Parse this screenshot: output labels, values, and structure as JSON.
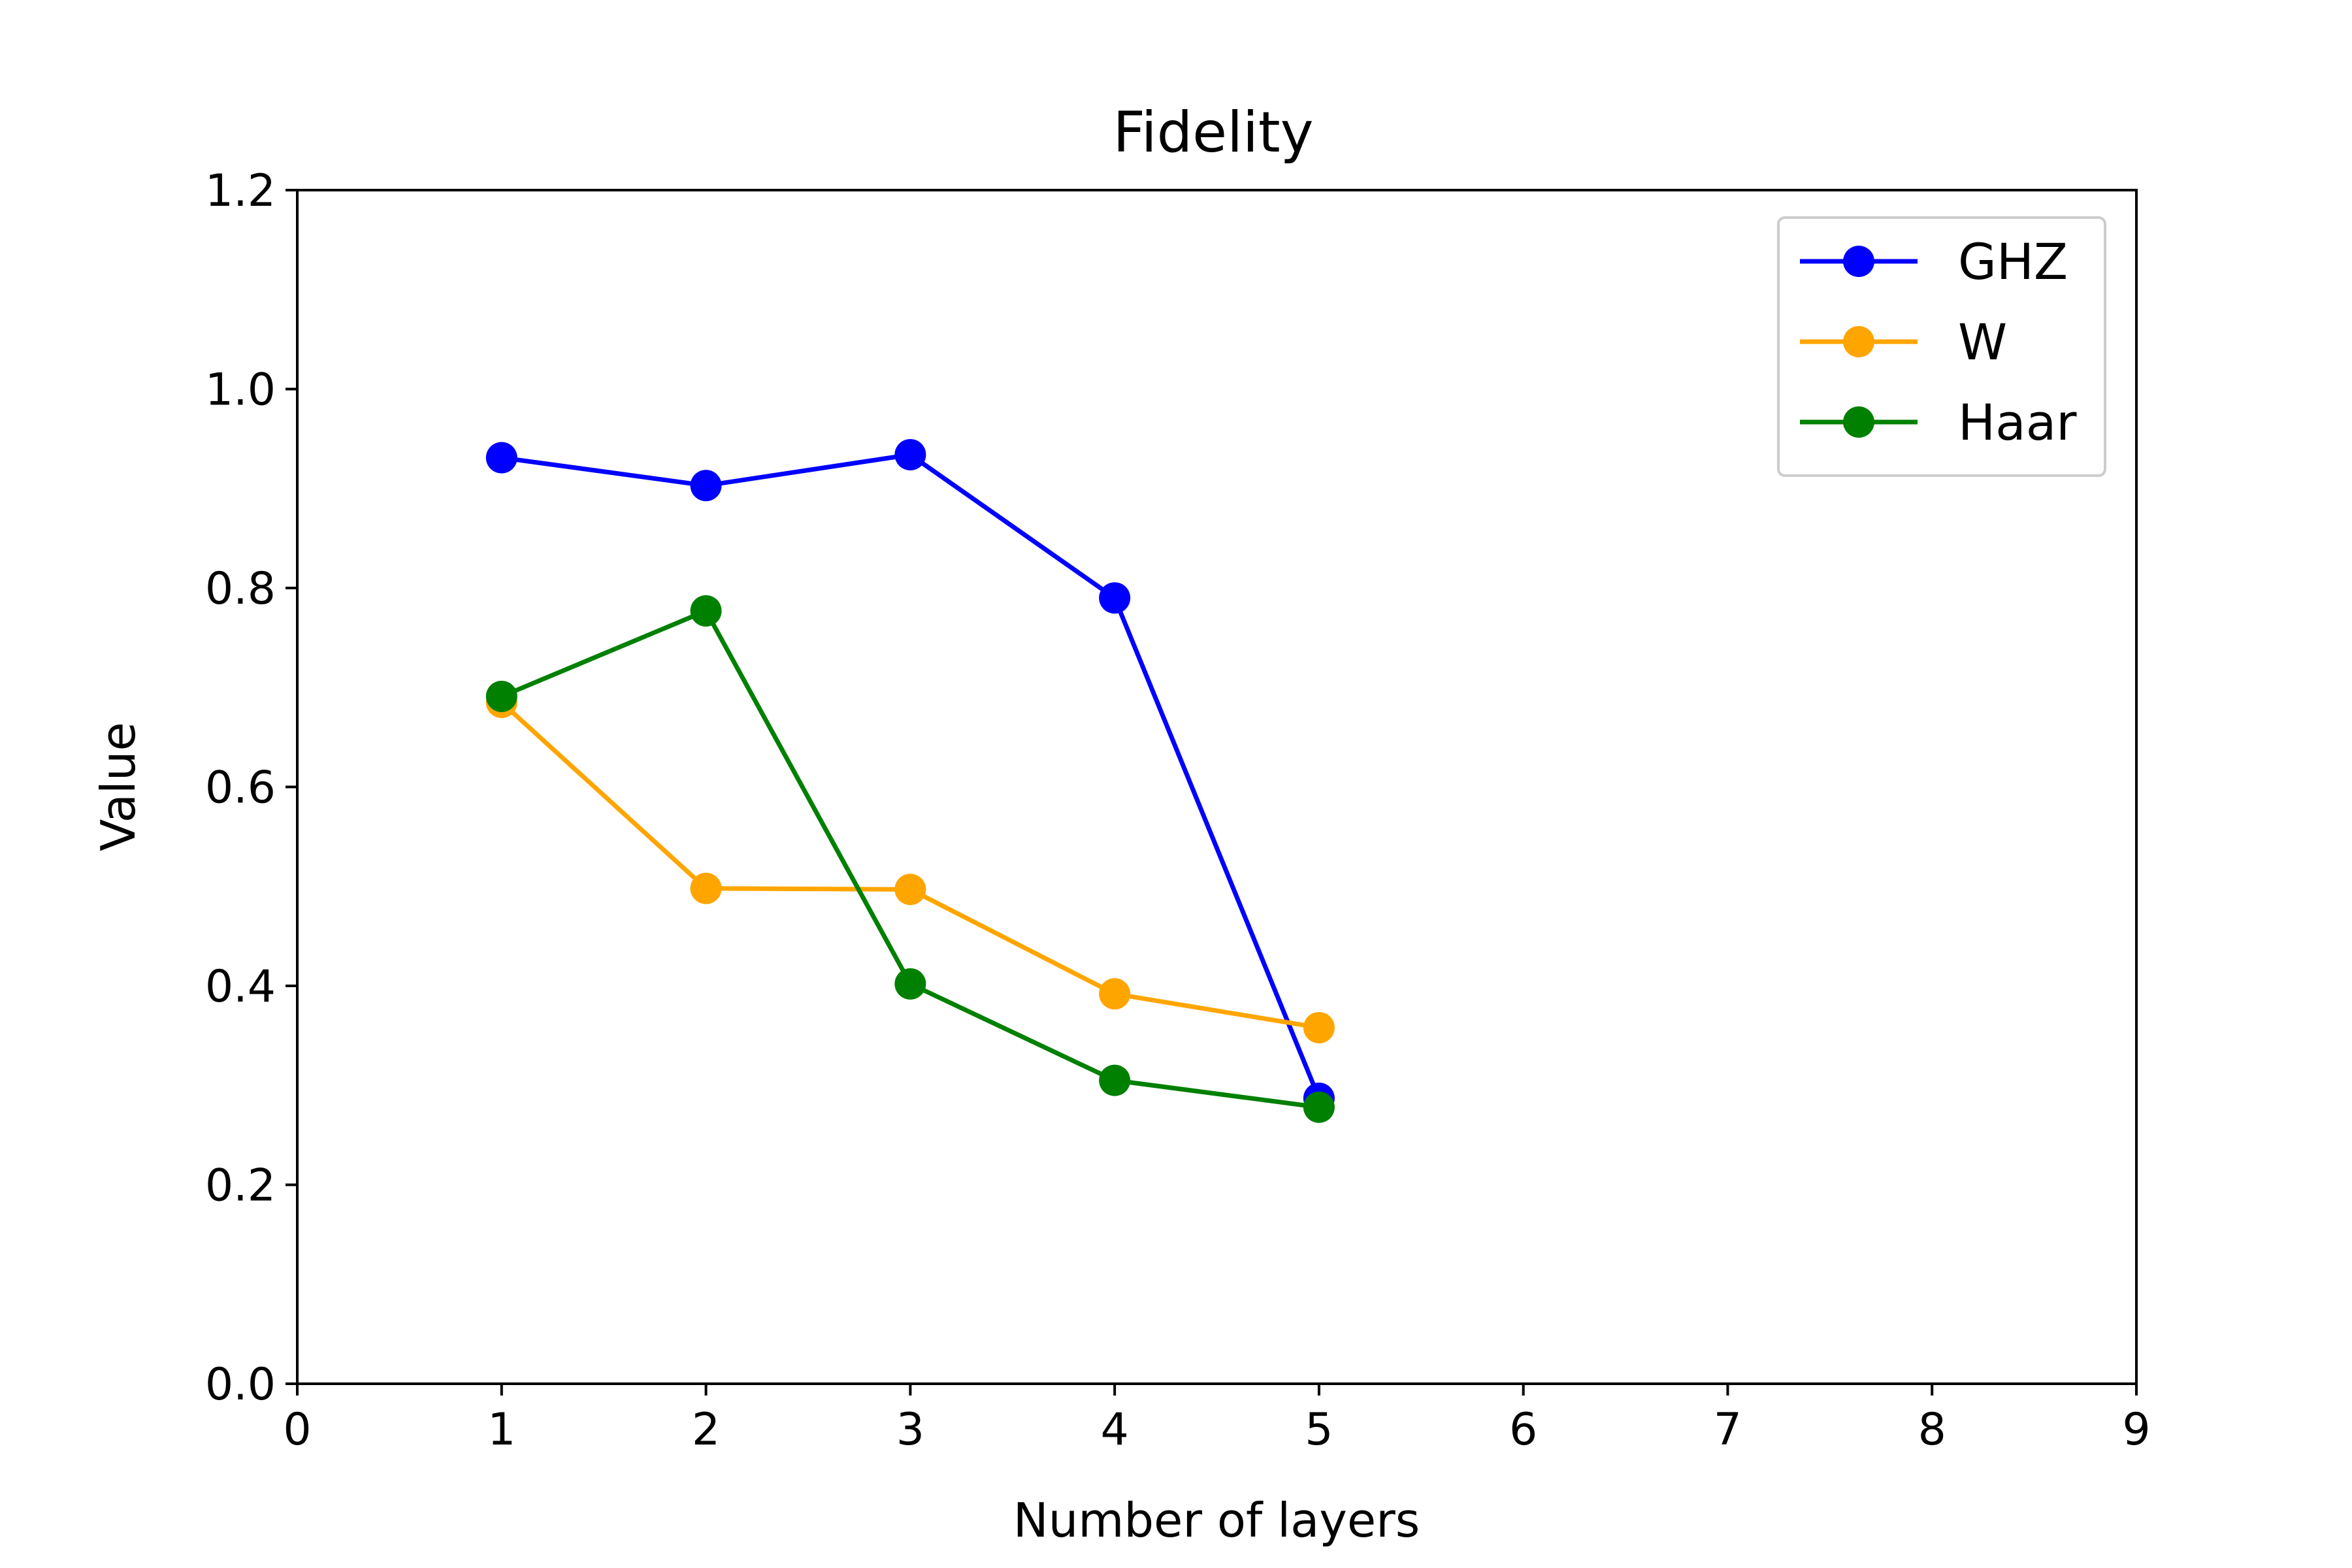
{
  "chart_data": {
    "type": "line",
    "title": "Fidelity",
    "xlabel": "Number of layers",
    "ylabel": "Value",
    "xlim": [
      0,
      9
    ],
    "ylim": [
      0,
      1.2
    ],
    "xticks": [
      "0",
      "1",
      "2",
      "3",
      "4",
      "5",
      "6",
      "7",
      "8",
      "9"
    ],
    "yticks": [
      "0.0",
      "0.2",
      "0.4",
      "0.6",
      "0.8",
      "1.0",
      "1.2"
    ],
    "grid": false,
    "legend_position": "top-right",
    "x": [
      1,
      2,
      3,
      4,
      5
    ],
    "series": [
      {
        "name": "GHZ",
        "color": "#0000ff",
        "marker": "circle",
        "values": [
          0.931,
          0.903,
          0.934,
          0.79,
          0.287
        ]
      },
      {
        "name": "W",
        "color": "#ffa500",
        "marker": "circle",
        "values": [
          0.685,
          0.498,
          0.497,
          0.392,
          0.358
        ]
      },
      {
        "name": "Haar",
        "color": "#008000",
        "marker": "circle",
        "values": [
          0.691,
          0.777,
          0.402,
          0.305,
          0.278
        ]
      }
    ]
  }
}
